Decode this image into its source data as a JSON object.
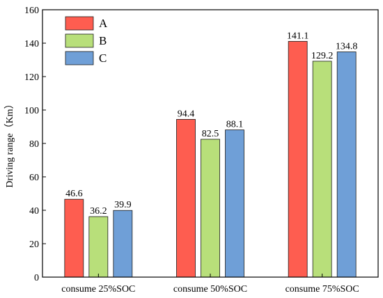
{
  "chart_data": {
    "type": "bar",
    "title": "",
    "xlabel": "",
    "ylabel": "Driving range（Km）",
    "ylim": [
      0,
      160
    ],
    "yticks": [
      0,
      20,
      40,
      60,
      80,
      100,
      120,
      140,
      160
    ],
    "categories": [
      "consume 25%SOC",
      "consume 50%SOC",
      "consume 75%SOC"
    ],
    "series": [
      {
        "name": "A",
        "color": "#fe5d50",
        "values": [
          46.6,
          94.4,
          141.1
        ]
      },
      {
        "name": "B",
        "color": "#b8df7a",
        "values": [
          36.2,
          82.5,
          129.2
        ]
      },
      {
        "name": "C",
        "color": "#6f9fd7",
        "values": [
          39.9,
          88.1,
          134.8
        ]
      }
    ],
    "legend_position": "top-left",
    "grid": false
  }
}
